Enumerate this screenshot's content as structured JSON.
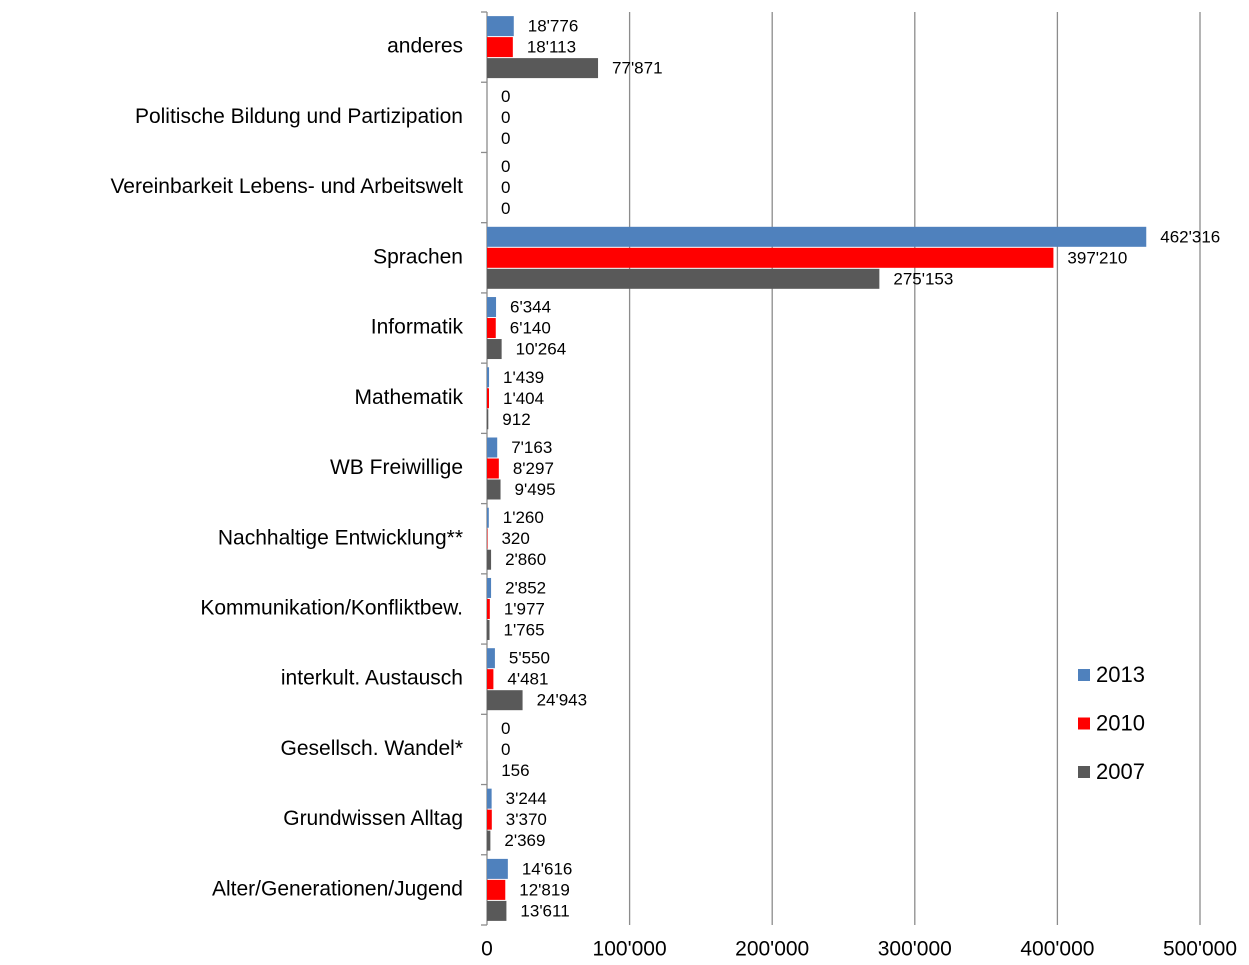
{
  "chart_data": {
    "type": "bar",
    "orientation": "horizontal",
    "categories": [
      "anderes",
      "Politische Bildung und Partizipation",
      "Vereinbarkeit Lebens- und Arbeitswelt",
      "Sprachen",
      "Informatik",
      "Mathematik",
      "WB Freiwillige",
      "Nachhaltige Entwicklung**",
      "Kommunikation/Konfliktbew.",
      "interkult. Austausch",
      "Gesellsch. Wandel*",
      "Grundwissen Alltag",
      "Alter/Generationen/Jugend"
    ],
    "series": [
      {
        "name": "2013",
        "color": "#4f81bd",
        "values": [
          18776,
          0,
          0,
          462316,
          6344,
          1439,
          7163,
          1260,
          2852,
          5550,
          0,
          3244,
          14616
        ],
        "value_labels": [
          "18'776",
          "0",
          "0",
          "462'316",
          "6'344",
          "1'439",
          "7'163",
          "1'260",
          "2'852",
          "5'550",
          "0",
          "3'244",
          "14'616"
        ]
      },
      {
        "name": "2010",
        "color": "#ff0000",
        "values": [
          18113,
          0,
          0,
          397210,
          6140,
          1404,
          8297,
          320,
          1977,
          4481,
          0,
          3370,
          12819
        ],
        "value_labels": [
          "18'113",
          "0",
          "0",
          "397'210",
          "6'140",
          "1'404",
          "8'297",
          "320",
          "1'977",
          "4'481",
          "0",
          "3'370",
          "12'819"
        ]
      },
      {
        "name": "2007",
        "color": "#595959",
        "values": [
          77871,
          0,
          0,
          275153,
          10264,
          912,
          9495,
          2860,
          1765,
          24943,
          156,
          2369,
          13611
        ],
        "value_labels": [
          "77'871",
          "0",
          "0",
          "275'153",
          "10'264",
          "912",
          "9'495",
          "2'860",
          "1'765",
          "24'943",
          "156",
          "2'369",
          "13'611"
        ]
      }
    ],
    "xlim": [
      0,
      500000
    ],
    "xticks": [
      0,
      {
        "value": 100000,
        "label": "100'000"
      },
      {
        "value": 200000,
        "label": "200'000"
      },
      {
        "value": 300000,
        "label": "300'000"
      },
      {
        "value": 400000,
        "label": "400'000"
      },
      {
        "value": 500000,
        "label": "500'000"
      }
    ],
    "grid": true,
    "legend": "right"
  }
}
